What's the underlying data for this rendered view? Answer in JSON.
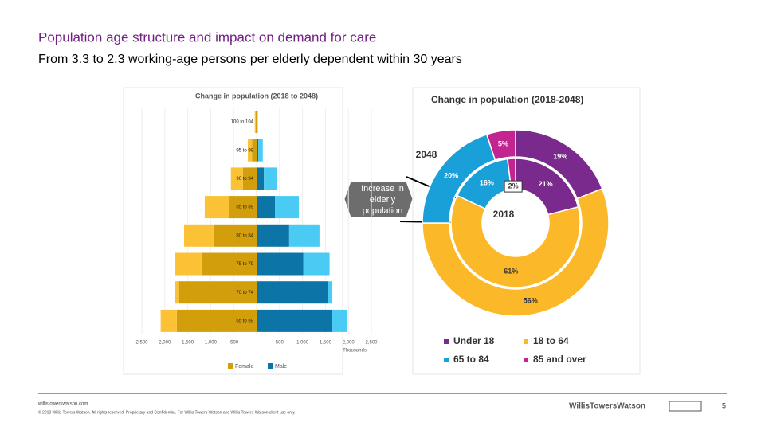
{
  "slide": {
    "title": "Population age structure and impact on demand for care",
    "subtitle": "From 3.3 to 2.3 working-age persons per elderly dependent within 30 years",
    "callout": "Increase in elderly population",
    "footer": {
      "url": "willistowerswatson.com",
      "copyright": "© 2018 Willis Towers Watson. All rights reserved. Proprietary and Confidential. For Willis Towers Watson and Willis Towers Watson client use only.",
      "logo": "WillisTowersWatson",
      "page": "5"
    }
  },
  "chart_data": [
    {
      "type": "pyramid",
      "title": "Change in population (2018 to 2048)",
      "categories": [
        "100 to 104",
        "95 to 99",
        "90 to 94",
        "85 to 89",
        "80 to 84",
        "75 to 79",
        "70 to 74",
        "65 to 69"
      ],
      "series": [
        {
          "name": "Female",
          "color": "#d39e0b",
          "increase_color": "#fcc235",
          "values": [
            -20,
            -100,
            -300,
            -590,
            -940,
            -1200,
            -1690,
            -1740
          ],
          "increase": [
            -20,
            -90,
            -260,
            -540,
            -640,
            -570,
            -90,
            -350
          ]
        },
        {
          "name": "Male",
          "color": "#0d74a8",
          "increase_color": "#4acbf3",
          "values": [
            5,
            35,
            160,
            400,
            710,
            1020,
            1560,
            1650
          ],
          "increase": [
            20,
            100,
            280,
            520,
            660,
            570,
            90,
            330
          ]
        }
      ],
      "xlim": [
        -2500,
        2500
      ],
      "xticks": [
        {
          "value": -2500,
          "label": "2,500"
        },
        {
          "value": -2000,
          "label": "2,000"
        },
        {
          "value": -1500,
          "label": "1,500"
        },
        {
          "value": -1000,
          "label": "1,000"
        },
        -500,
        {
          "value": 0,
          "label": "-"
        },
        500,
        {
          "value": 1000,
          "label": "1,000"
        },
        {
          "value": 1500,
          "label": "1,500"
        },
        {
          "value": 2000,
          "label": "2,000"
        },
        {
          "value": 2500,
          "label": "2,500"
        }
      ],
      "xlabel": "Thousands",
      "grid": true
    },
    {
      "type": "donut",
      "title": "Change in population (2018-2048)",
      "categories": [
        "Under 18",
        "18 to 64",
        "65 to 84",
        "85 and over"
      ],
      "colors": [
        "#7a2a8c",
        "#fbb829",
        "#1aa0d8",
        "#c2258f"
      ],
      "rings": [
        {
          "label": "2048",
          "values": [
            19,
            56,
            20,
            5
          ],
          "value_labels": [
            "19%",
            "56%",
            "20%",
            "5%"
          ]
        },
        {
          "label": "2018",
          "values": [
            21,
            61,
            16,
            2
          ],
          "value_labels": [
            "21%",
            "61%",
            "16%",
            "2%"
          ]
        }
      ]
    }
  ]
}
